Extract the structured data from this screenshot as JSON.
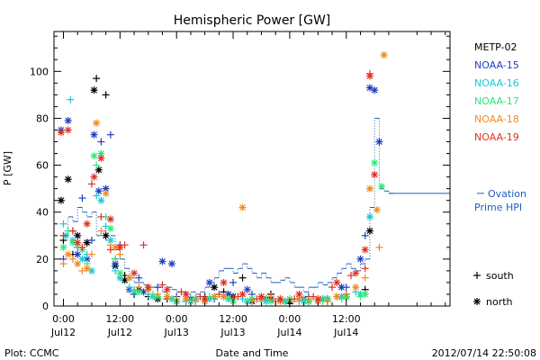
{
  "chart_data": {
    "type": "scatter",
    "title": "Hemispheric Power [GW]",
    "ylabel": "P [GW]",
    "xlabel": "Date and Time",
    "ylim": [
      0,
      117
    ],
    "xlim": [
      -2,
      82
    ],
    "x_units": "hours since 2012-07-12 00:00 UT",
    "yticks": [
      0,
      20,
      40,
      60,
      80,
      100
    ],
    "xticks": [
      {
        "x": 0,
        "time": "0:00",
        "date": "Jul12"
      },
      {
        "x": 12,
        "time": "12:00",
        "date": "Jul12"
      },
      {
        "x": 24,
        "time": "0:00",
        "date": "Jul13"
      },
      {
        "x": 36,
        "time": "12:00",
        "date": "Jul13"
      },
      {
        "x": 48,
        "time": "0:00",
        "date": "Jul14"
      },
      {
        "x": 60,
        "time": "12:00",
        "date": "Jul14"
      }
    ],
    "legend_position": "right",
    "series": [
      {
        "name": "METP-02",
        "color": "#000000",
        "south": [
          [
            0,
            28
          ],
          [
            2,
            22
          ],
          [
            3,
            25
          ],
          [
            5,
            27
          ],
          [
            7,
            97
          ],
          [
            9,
            90
          ],
          [
            11,
            20
          ],
          [
            13,
            13
          ],
          [
            15,
            5
          ],
          [
            18,
            4
          ],
          [
            22,
            3
          ],
          [
            26,
            2
          ],
          [
            30,
            4
          ],
          [
            34,
            6
          ],
          [
            38,
            12
          ],
          [
            40,
            3
          ],
          [
            44,
            5
          ],
          [
            48,
            1
          ],
          [
            52,
            3
          ],
          [
            56,
            2
          ],
          [
            60,
            5
          ],
          [
            64,
            7
          ]
        ],
        "north": [
          [
            -0.5,
            45
          ],
          [
            1,
            54
          ],
          [
            3,
            30
          ],
          [
            5,
            27
          ],
          [
            6.5,
            92
          ],
          [
            7.5,
            58
          ],
          [
            9,
            30
          ],
          [
            11,
            17
          ],
          [
            13,
            11
          ],
          [
            16,
            7
          ],
          [
            20,
            3
          ],
          [
            24,
            2
          ],
          [
            28,
            3
          ],
          [
            32,
            8
          ],
          [
            36,
            4
          ],
          [
            40,
            2
          ],
          [
            44,
            3
          ],
          [
            48,
            2
          ],
          [
            52,
            2
          ],
          [
            56,
            3
          ],
          [
            60,
            4
          ],
          [
            65,
            32
          ]
        ]
      },
      {
        "name": "NOAA-15",
        "color": "#1f3fbf",
        "south": [
          [
            0,
            20
          ],
          [
            2,
            32
          ],
          [
            4,
            46
          ],
          [
            6,
            28
          ],
          [
            8,
            70
          ],
          [
            10,
            73
          ],
          [
            12,
            26
          ],
          [
            16,
            12
          ],
          [
            20,
            8
          ],
          [
            24,
            4
          ],
          [
            28,
            2
          ],
          [
            32,
            3
          ],
          [
            36,
            10
          ],
          [
            40,
            5
          ],
          [
            44,
            3
          ],
          [
            48,
            2
          ],
          [
            52,
            4
          ],
          [
            56,
            3
          ],
          [
            60,
            8
          ],
          [
            64,
            30
          ]
        ],
        "north": [
          [
            -0.5,
            75
          ],
          [
            1,
            79
          ],
          [
            3,
            22
          ],
          [
            5,
            20
          ],
          [
            6.5,
            73
          ],
          [
            7.5,
            49
          ],
          [
            9,
            50
          ],
          [
            11,
            18
          ],
          [
            14,
            7
          ],
          [
            17,
            6
          ],
          [
            21,
            19
          ],
          [
            23,
            18
          ],
          [
            27,
            3
          ],
          [
            31,
            10
          ],
          [
            35,
            5
          ],
          [
            39,
            7
          ],
          [
            43,
            3
          ],
          [
            47,
            2
          ],
          [
            51,
            3
          ],
          [
            55,
            3
          ],
          [
            59,
            8
          ],
          [
            63,
            20
          ],
          [
            65,
            93
          ],
          [
            66,
            92
          ],
          [
            67,
            70
          ]
        ]
      },
      {
        "name": "NOAA-16",
        "color": "#19c8d8",
        "south": [
          [
            0,
            35
          ],
          [
            1.5,
            88
          ],
          [
            3,
            25
          ],
          [
            5,
            22
          ],
          [
            7,
            47
          ],
          [
            9,
            34
          ],
          [
            11,
            15
          ],
          [
            14,
            8
          ],
          [
            18,
            5
          ],
          [
            22,
            4
          ],
          [
            26,
            2
          ],
          [
            30,
            3
          ],
          [
            34,
            4
          ],
          [
            38,
            3
          ],
          [
            42,
            2
          ],
          [
            46,
            3
          ],
          [
            50,
            2
          ],
          [
            54,
            2
          ],
          [
            58,
            4
          ],
          [
            62,
            6
          ]
        ],
        "north": [
          [
            0.5,
            30
          ],
          [
            2,
            28
          ],
          [
            4,
            20
          ],
          [
            6,
            15
          ],
          [
            8,
            45
          ],
          [
            10,
            28
          ],
          [
            12,
            12
          ],
          [
            15,
            6
          ],
          [
            19,
            4
          ],
          [
            23,
            3
          ],
          [
            27,
            2
          ],
          [
            31,
            3
          ],
          [
            35,
            3
          ],
          [
            39,
            2
          ],
          [
            43,
            2
          ],
          [
            47,
            2
          ],
          [
            51,
            2
          ],
          [
            55,
            3
          ],
          [
            59,
            4
          ],
          [
            63,
            5
          ],
          [
            65,
            38
          ]
        ]
      },
      {
        "name": "NOAA-17",
        "color": "#2ee87a",
        "south": [
          [
            1,
            32
          ],
          [
            3,
            26
          ],
          [
            5,
            18
          ],
          [
            7,
            60
          ],
          [
            9,
            38
          ],
          [
            11,
            20
          ],
          [
            15,
            7
          ],
          [
            19,
            5
          ],
          [
            23,
            3
          ],
          [
            27,
            2
          ],
          [
            31,
            4
          ],
          [
            35,
            3
          ],
          [
            39,
            2
          ],
          [
            43,
            3
          ],
          [
            47,
            2
          ],
          [
            51,
            3
          ],
          [
            55,
            2
          ],
          [
            59,
            3
          ],
          [
            63,
            4
          ]
        ],
        "north": [
          [
            0,
            25
          ],
          [
            2,
            27
          ],
          [
            4,
            24
          ],
          [
            6.5,
            64
          ],
          [
            8,
            65
          ],
          [
            10,
            33
          ],
          [
            12,
            14
          ],
          [
            16,
            6
          ],
          [
            20,
            4
          ],
          [
            24,
            2
          ],
          [
            28,
            3
          ],
          [
            32,
            4
          ],
          [
            36,
            2
          ],
          [
            40,
            3
          ],
          [
            44,
            2
          ],
          [
            48,
            3
          ],
          [
            52,
            2
          ],
          [
            56,
            3
          ],
          [
            60,
            4
          ],
          [
            64,
            5
          ],
          [
            66,
            61
          ],
          [
            67.5,
            51
          ]
        ]
      },
      {
        "name": "NOAA-18",
        "color": "#f08a1e",
        "south": [
          [
            0,
            18
          ],
          [
            2,
            20
          ],
          [
            4,
            15
          ],
          [
            6,
            22
          ],
          [
            8,
            32
          ],
          [
            10,
            26
          ],
          [
            12,
            22
          ],
          [
            16,
            8
          ],
          [
            20,
            5
          ],
          [
            24,
            3
          ],
          [
            28,
            2
          ],
          [
            32,
            4
          ],
          [
            36,
            3
          ],
          [
            40,
            2
          ],
          [
            44,
            4
          ],
          [
            48,
            2
          ],
          [
            52,
            3
          ],
          [
            56,
            2
          ],
          [
            60,
            5
          ],
          [
            64,
            12
          ],
          [
            67,
            25
          ]
        ],
        "north": [
          [
            1,
            22
          ],
          [
            3,
            18
          ],
          [
            5,
            16
          ],
          [
            7,
            78
          ],
          [
            9,
            48
          ],
          [
            11,
            25
          ],
          [
            14,
            12
          ],
          [
            18,
            7
          ],
          [
            22,
            4
          ],
          [
            26,
            3
          ],
          [
            30,
            2
          ],
          [
            34,
            4
          ],
          [
            38,
            42
          ],
          [
            42,
            3
          ],
          [
            46,
            2
          ],
          [
            50,
            3
          ],
          [
            54,
            2
          ],
          [
            58,
            4
          ],
          [
            62,
            8
          ],
          [
            65,
            50
          ],
          [
            66.5,
            41
          ],
          [
            68,
            107
          ]
        ]
      },
      {
        "name": "NOAA-19",
        "color": "#e03020",
        "south": [
          [
            0,
            30
          ],
          [
            2,
            32
          ],
          [
            4,
            25
          ],
          [
            6,
            52
          ],
          [
            8,
            38
          ],
          [
            10,
            24
          ],
          [
            13,
            26
          ],
          [
            17,
            26
          ],
          [
            21,
            9
          ],
          [
            25,
            6
          ],
          [
            29,
            4
          ],
          [
            33,
            5
          ],
          [
            37,
            4
          ],
          [
            41,
            3
          ],
          [
            45,
            2
          ],
          [
            49,
            3
          ],
          [
            53,
            4
          ],
          [
            57,
            8
          ],
          [
            61,
            13
          ],
          [
            64,
            16
          ],
          [
            65,
            99
          ]
        ],
        "north": [
          [
            -0.5,
            74
          ],
          [
            1,
            75
          ],
          [
            3,
            27
          ],
          [
            5,
            35
          ],
          [
            6.5,
            55
          ],
          [
            8,
            63
          ],
          [
            10,
            37
          ],
          [
            12,
            25
          ],
          [
            15,
            14
          ],
          [
            18,
            8
          ],
          [
            22,
            7
          ],
          [
            26,
            5
          ],
          [
            30,
            3
          ],
          [
            34,
            10
          ],
          [
            38,
            5
          ],
          [
            42,
            4
          ],
          [
            46,
            3
          ],
          [
            50,
            5
          ],
          [
            54,
            3
          ],
          [
            58,
            10
          ],
          [
            62,
            14
          ],
          [
            64,
            24
          ],
          [
            65,
            98
          ],
          [
            66,
            56
          ]
        ]
      }
    ],
    "ovation": {
      "name": "Ovation Prime HPI",
      "legend_line1": "Ovation",
      "legend_line2": "Prime HPI",
      "color": "#1f5fbf",
      "points": [
        [
          0,
          30
        ],
        [
          1,
          38
        ],
        [
          2,
          36
        ],
        [
          3,
          42
        ],
        [
          4,
          40
        ],
        [
          5,
          38
        ],
        [
          6,
          40
        ],
        [
          7,
          30
        ],
        [
          8,
          32
        ],
        [
          9,
          28
        ],
        [
          10,
          30
        ],
        [
          11,
          24
        ],
        [
          12,
          20
        ],
        [
          13,
          16
        ],
        [
          14,
          12
        ],
        [
          15,
          10
        ],
        [
          16,
          10
        ],
        [
          17,
          9
        ],
        [
          18,
          8
        ],
        [
          19,
          8
        ],
        [
          20,
          8
        ],
        [
          21,
          6
        ],
        [
          22,
          8
        ],
        [
          23,
          7
        ],
        [
          24,
          6
        ],
        [
          25,
          6
        ],
        [
          26,
          5
        ],
        [
          27,
          6
        ],
        [
          28,
          5
        ],
        [
          29,
          6
        ],
        [
          30,
          8
        ],
        [
          31,
          10
        ],
        [
          32,
          12
        ],
        [
          33,
          15
        ],
        [
          34,
          16
        ],
        [
          35,
          16
        ],
        [
          36,
          14
        ],
        [
          37,
          16
        ],
        [
          38,
          18
        ],
        [
          39,
          16
        ],
        [
          40,
          14
        ],
        [
          41,
          12
        ],
        [
          42,
          14
        ],
        [
          43,
          12
        ],
        [
          44,
          10
        ],
        [
          45,
          10
        ],
        [
          46,
          11
        ],
        [
          47,
          12
        ],
        [
          48,
          10
        ],
        [
          49,
          8
        ],
        [
          50,
          8
        ],
        [
          51,
          6
        ],
        [
          52,
          8
        ],
        [
          53,
          8
        ],
        [
          54,
          10
        ],
        [
          55,
          9
        ],
        [
          56,
          10
        ],
        [
          57,
          12
        ],
        [
          58,
          14
        ],
        [
          59,
          16
        ],
        [
          60,
          18
        ],
        [
          61,
          16
        ],
        [
          62,
          15
        ],
        [
          63,
          18
        ],
        [
          64,
          20
        ],
        [
          65,
          42
        ],
        [
          66,
          80
        ],
        [
          67,
          50
        ],
        [
          68,
          49
        ],
        [
          69,
          48
        ]
      ]
    },
    "symbol_legend": {
      "south": "south",
      "north": "north"
    }
  },
  "footer": {
    "left": "Plot: CCMC",
    "right": "2012/07/14 22:50:08"
  }
}
